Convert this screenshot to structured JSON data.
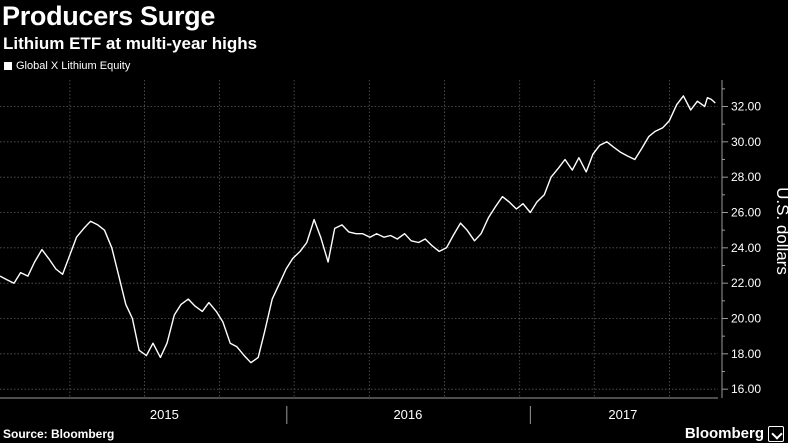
{
  "header": {
    "title": "Producers Surge",
    "subtitle": "Lithium ETF at multi-year highs"
  },
  "legend": {
    "label": "Global X Lithium Equity"
  },
  "footer": {
    "source": "Source: Bloomberg",
    "brand": "Bloomberg"
  },
  "colors": {
    "background": "#000000",
    "line": "#ffffff",
    "grid": "#5a5a5a",
    "text": "#ffffff"
  },
  "chart_data": {
    "type": "line",
    "title": "Producers Surge",
    "subtitle": "Lithium ETF at multi-year highs",
    "ylabel": "U.S. dollars",
    "xlabel": "",
    "ylim": [
      15.5,
      33.5
    ],
    "xlim": [
      "2014-10-27",
      "2017-10-10"
    ],
    "y_ticks": [
      16,
      18,
      20,
      22,
      24,
      26,
      28,
      30,
      32
    ],
    "y_tick_labels": [
      "16.00",
      "18.00",
      "20.00",
      "22.00",
      "24.00",
      "26.00",
      "28.00",
      "30.00",
      "32.00"
    ],
    "x_labels": [
      {
        "label": "2015",
        "date": "2015-07-01"
      },
      {
        "label": "2016",
        "date": "2016-07-01"
      },
      {
        "label": "2017",
        "date": "2017-05-20"
      }
    ],
    "x_year_separators": [
      "2016-01-01",
      "2017-01-01"
    ],
    "grid": true,
    "legend_position": "top-left",
    "series": [
      {
        "name": "Global X Lithium Equity",
        "x": [
          "2014-10-27",
          "2014-11-06",
          "2014-11-17",
          "2014-11-27",
          "2014-12-08",
          "2014-12-18",
          "2014-12-29",
          "2015-01-08",
          "2015-01-19",
          "2015-01-29",
          "2015-02-09",
          "2015-02-19",
          "2015-03-02",
          "2015-03-12",
          "2015-03-23",
          "2015-04-02",
          "2015-04-13",
          "2015-04-23",
          "2015-05-04",
          "2015-05-14",
          "2015-05-24",
          "2015-06-04",
          "2015-06-14",
          "2015-06-25",
          "2015-07-05",
          "2015-07-16",
          "2015-07-26",
          "2015-08-06",
          "2015-08-16",
          "2015-08-27",
          "2015-09-06",
          "2015-09-17",
          "2015-09-27",
          "2015-10-08",
          "2015-10-18",
          "2015-10-29",
          "2015-11-08",
          "2015-11-19",
          "2015-11-29",
          "2015-12-10",
          "2015-12-20",
          "2015-12-31",
          "2016-01-10",
          "2016-01-21",
          "2016-01-31",
          "2016-02-11",
          "2016-02-21",
          "2016-03-03",
          "2016-03-13",
          "2016-03-24",
          "2016-04-03",
          "2016-04-14",
          "2016-04-24",
          "2016-05-05",
          "2016-05-15",
          "2016-05-26",
          "2016-06-05",
          "2016-06-15",
          "2016-06-26",
          "2016-07-06",
          "2016-07-17",
          "2016-07-27",
          "2016-08-07",
          "2016-08-17",
          "2016-08-28",
          "2016-09-07",
          "2016-09-18",
          "2016-09-28",
          "2016-10-09",
          "2016-10-19",
          "2016-10-30",
          "2016-11-09",
          "2016-11-20",
          "2016-11-30",
          "2016-12-11",
          "2016-12-21",
          "2017-01-01",
          "2017-01-11",
          "2017-01-22",
          "2017-02-01",
          "2017-02-12",
          "2017-02-22",
          "2017-03-05",
          "2017-03-15",
          "2017-03-26",
          "2017-04-05",
          "2017-04-15",
          "2017-04-26",
          "2017-05-06",
          "2017-05-17",
          "2017-05-27",
          "2017-06-07",
          "2017-06-17",
          "2017-06-28",
          "2017-07-08",
          "2017-07-19",
          "2017-07-29",
          "2017-08-09",
          "2017-08-19",
          "2017-08-30",
          "2017-09-09",
          "2017-09-20",
          "2017-09-24",
          "2017-09-30",
          "2017-10-06"
        ],
        "values": [
          22.4,
          22.2,
          22.0,
          22.6,
          22.4,
          23.2,
          23.9,
          23.4,
          22.8,
          22.5,
          23.6,
          24.6,
          25.1,
          25.5,
          25.3,
          25.0,
          24.0,
          22.5,
          20.8,
          20.0,
          18.2,
          17.9,
          18.6,
          17.8,
          18.6,
          20.2,
          20.8,
          21.1,
          20.7,
          20.4,
          20.9,
          20.4,
          19.8,
          18.6,
          18.4,
          17.9,
          17.5,
          17.8,
          19.3,
          21.1,
          21.9,
          22.8,
          23.4,
          23.8,
          24.3,
          25.6,
          24.6,
          23.2,
          25.1,
          25.3,
          24.9,
          24.8,
          24.8,
          24.6,
          24.8,
          24.6,
          24.7,
          24.5,
          24.8,
          24.4,
          24.3,
          24.5,
          24.1,
          23.8,
          24.0,
          24.7,
          25.4,
          25.0,
          24.4,
          24.8,
          25.7,
          26.3,
          26.9,
          26.6,
          26.2,
          26.5,
          26.0,
          26.6,
          27.0,
          28.0,
          28.5,
          29.0,
          28.4,
          29.1,
          28.3,
          29.3,
          29.8,
          30.0,
          29.7,
          29.4,
          29.2,
          29.0,
          29.6,
          30.3,
          30.6,
          30.8,
          31.2,
          32.1,
          32.6,
          31.8,
          32.3,
          32.0,
          32.5,
          32.4,
          32.2
        ]
      }
    ]
  }
}
